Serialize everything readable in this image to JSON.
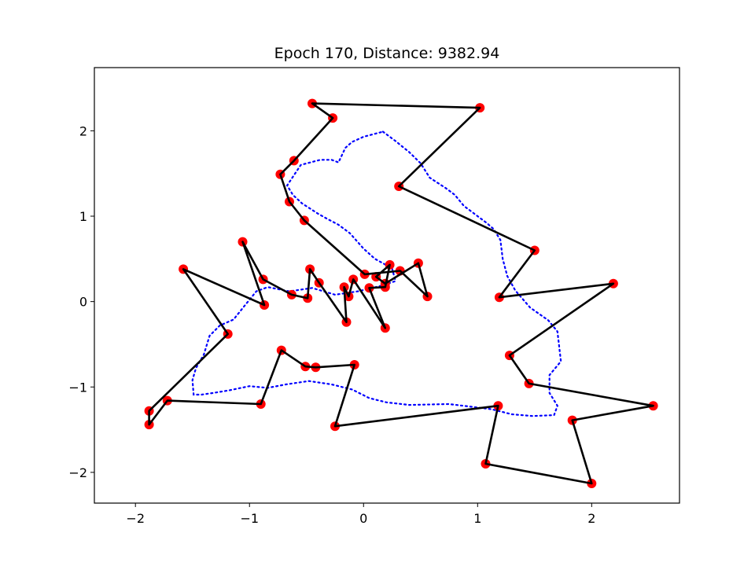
{
  "chart_data": {
    "type": "line",
    "title": "Epoch 170, Distance: 9382.94",
    "xlabel": "",
    "ylabel": "",
    "xlim": [
      -2.36,
      2.77
    ],
    "ylim": [
      -2.36,
      2.74
    ],
    "xticks": [
      -2,
      -1,
      0,
      1,
      2
    ],
    "xtick_labels": [
      "−2",
      "−1",
      "0",
      "1",
      "2"
    ],
    "yticks": [
      -2,
      -1,
      0,
      1,
      2
    ],
    "ytick_labels": [
      "−2",
      "−1",
      "0",
      "1",
      "2"
    ],
    "grid": false,
    "colors": {
      "route": "#000000",
      "cities": "#ff0000",
      "contour": "#0000ff"
    },
    "series": [
      {
        "role": "cities",
        "style": "scatter",
        "points": [
          [
            -0.45,
            2.32
          ],
          [
            1.02,
            2.27
          ],
          [
            0.31,
            1.35
          ],
          [
            1.5,
            0.6
          ],
          [
            1.19,
            0.05
          ],
          [
            2.19,
            0.21
          ],
          [
            1.28,
            -0.63
          ],
          [
            1.45,
            -0.96
          ],
          [
            2.54,
            -1.22
          ],
          [
            1.83,
            -1.39
          ],
          [
            2.0,
            -2.13
          ],
          [
            1.07,
            -1.9
          ],
          [
            1.18,
            -1.22
          ],
          [
            -0.25,
            -1.46
          ],
          [
            -0.08,
            -0.74
          ],
          [
            -0.42,
            -0.77
          ],
          [
            -0.51,
            -0.76
          ],
          [
            -0.72,
            -0.57
          ],
          [
            -0.9,
            -1.2
          ],
          [
            -1.72,
            -1.16
          ],
          [
            -1.88,
            -1.44
          ],
          [
            -1.88,
            -1.28
          ],
          [
            -1.19,
            -0.38
          ],
          [
            -1.58,
            0.38
          ],
          [
            -0.87,
            -0.04
          ],
          [
            -0.63,
            0.08
          ],
          [
            -0.49,
            0.04
          ],
          [
            -0.47,
            0.38
          ],
          [
            -0.39,
            0.22
          ],
          [
            -0.15,
            -0.24
          ],
          [
            -0.09,
            0.26
          ],
          [
            -0.13,
            0.06
          ],
          [
            -0.17,
            0.17
          ],
          [
            0.19,
            -0.31
          ],
          [
            0.05,
            0.16
          ],
          [
            0.19,
            0.17
          ],
          [
            0.23,
            0.43
          ],
          [
            0.11,
            0.29
          ],
          [
            0.19,
            0.21
          ],
          [
            0.48,
            0.45
          ],
          [
            0.56,
            0.06
          ],
          [
            0.32,
            0.36
          ],
          [
            0.01,
            0.32
          ],
          [
            -0.52,
            0.95
          ],
          [
            -0.65,
            1.17
          ],
          [
            -0.73,
            1.49
          ],
          [
            -0.61,
            1.65
          ],
          [
            -0.27,
            2.15
          ],
          [
            -1.06,
            0.7
          ],
          [
            -0.88,
            0.26
          ]
        ]
      },
      {
        "role": "route",
        "style": "solid",
        "points": [
          [
            -0.27,
            2.15
          ],
          [
            -0.45,
            2.32
          ],
          [
            1.02,
            2.27
          ],
          [
            0.31,
            1.35
          ],
          [
            1.5,
            0.6
          ],
          [
            1.19,
            0.05
          ],
          [
            2.19,
            0.21
          ],
          [
            1.28,
            -0.63
          ],
          [
            1.45,
            -0.96
          ],
          [
            2.54,
            -1.22
          ],
          [
            1.83,
            -1.39
          ],
          [
            2.0,
            -2.13
          ],
          [
            1.07,
            -1.9
          ],
          [
            1.18,
            -1.22
          ],
          [
            -0.25,
            -1.46
          ],
          [
            -0.08,
            -0.74
          ],
          [
            -0.42,
            -0.77
          ],
          [
            -0.51,
            -0.76
          ],
          [
            -0.72,
            -0.57
          ],
          [
            -0.9,
            -1.2
          ],
          [
            -1.72,
            -1.16
          ],
          [
            -1.88,
            -1.44
          ],
          [
            -1.88,
            -1.28
          ],
          [
            -1.19,
            -0.38
          ],
          [
            -1.58,
            0.38
          ],
          [
            -0.87,
            -0.04
          ],
          [
            -1.06,
            0.7
          ],
          [
            -0.88,
            0.26
          ],
          [
            -0.63,
            0.08
          ],
          [
            -0.49,
            0.04
          ],
          [
            -0.47,
            0.38
          ],
          [
            -0.39,
            0.22
          ],
          [
            -0.15,
            -0.24
          ],
          [
            -0.17,
            0.17
          ],
          [
            -0.13,
            0.06
          ],
          [
            -0.09,
            0.26
          ],
          [
            0.19,
            -0.31
          ],
          [
            0.05,
            0.16
          ],
          [
            0.19,
            0.17
          ],
          [
            0.23,
            0.43
          ],
          [
            0.11,
            0.29
          ],
          [
            0.19,
            0.21
          ],
          [
            0.48,
            0.45
          ],
          [
            0.56,
            0.06
          ],
          [
            0.32,
            0.36
          ],
          [
            0.01,
            0.32
          ],
          [
            -0.52,
            0.95
          ],
          [
            -0.65,
            1.17
          ],
          [
            -0.73,
            1.49
          ],
          [
            -0.61,
            1.65
          ],
          [
            -0.27,
            2.15
          ]
        ]
      },
      {
        "role": "contour",
        "style": "dotted",
        "points": [
          [
            0.17,
            1.99
          ],
          [
            0.28,
            1.88
          ],
          [
            0.4,
            1.75
          ],
          [
            0.5,
            1.62
          ],
          [
            0.58,
            1.45
          ],
          [
            0.72,
            1.33
          ],
          [
            0.8,
            1.25
          ],
          [
            0.88,
            1.12
          ],
          [
            1.0,
            1.0
          ],
          [
            1.08,
            0.92
          ],
          [
            1.14,
            0.85
          ],
          [
            1.2,
            0.72
          ],
          [
            1.22,
            0.5
          ],
          [
            1.26,
            0.3
          ],
          [
            1.33,
            0.13
          ],
          [
            1.46,
            -0.07
          ],
          [
            1.62,
            -0.22
          ],
          [
            1.7,
            -0.35
          ],
          [
            1.73,
            -0.7
          ],
          [
            1.63,
            -0.86
          ],
          [
            1.63,
            -1.07
          ],
          [
            1.7,
            -1.22
          ],
          [
            1.67,
            -1.33
          ],
          [
            1.48,
            -1.34
          ],
          [
            1.3,
            -1.32
          ],
          [
            1.12,
            -1.26
          ],
          [
            0.75,
            -1.2
          ],
          [
            0.4,
            -1.21
          ],
          [
            0.2,
            -1.18
          ],
          [
            0.05,
            -1.13
          ],
          [
            -0.1,
            -1.03
          ],
          [
            -0.28,
            -0.97
          ],
          [
            -0.48,
            -0.93
          ],
          [
            -0.68,
            -0.97
          ],
          [
            -0.84,
            -1.01
          ],
          [
            -1.0,
            -0.99
          ],
          [
            -1.18,
            -1.04
          ],
          [
            -1.32,
            -1.07
          ],
          [
            -1.42,
            -1.09
          ],
          [
            -1.49,
            -1.09
          ],
          [
            -1.5,
            -0.92
          ],
          [
            -1.47,
            -0.78
          ],
          [
            -1.4,
            -0.62
          ],
          [
            -1.35,
            -0.4
          ],
          [
            -1.26,
            -0.28
          ],
          [
            -1.14,
            -0.21
          ],
          [
            -1.05,
            -0.06
          ],
          [
            -0.94,
            0.12
          ],
          [
            -0.84,
            0.17
          ],
          [
            -0.65,
            0.12
          ],
          [
            -0.45,
            0.16
          ],
          [
            -0.25,
            0.08
          ],
          [
            -0.05,
            0.12
          ],
          [
            0.14,
            0.18
          ],
          [
            0.28,
            0.24
          ],
          [
            0.25,
            0.39
          ],
          [
            0.1,
            0.5
          ],
          [
            0.0,
            0.62
          ],
          [
            -0.12,
            0.8
          ],
          [
            -0.22,
            0.9
          ],
          [
            -0.32,
            0.97
          ],
          [
            -0.4,
            1.03
          ],
          [
            -0.54,
            1.15
          ],
          [
            -0.62,
            1.25
          ],
          [
            -0.67,
            1.36
          ],
          [
            -0.55,
            1.6
          ],
          [
            -0.38,
            1.66
          ],
          [
            -0.28,
            1.66
          ],
          [
            -0.22,
            1.63
          ],
          [
            -0.16,
            1.8
          ],
          [
            -0.1,
            1.87
          ],
          [
            0.0,
            1.93
          ],
          [
            0.17,
            1.99
          ]
        ]
      }
    ]
  }
}
